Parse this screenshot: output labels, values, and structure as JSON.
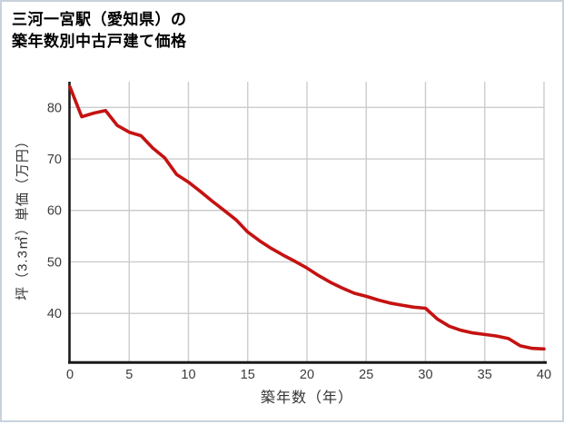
{
  "window": {
    "background": "#ffffff",
    "border_color": "#c9d2da"
  },
  "title": {
    "line1": "三河一宮駅（愛知県）の",
    "line2": "築年数別中古戸建て価格"
  },
  "chart_data": {
    "type": "line",
    "title": "三河一宮駅（愛知県）の築年数別中古戸建て価格",
    "xlabel": "築年数（年）",
    "ylabel": "坪（3.3㎡）単価（万円）",
    "x": [
      0,
      1,
      2,
      3,
      4,
      5,
      6,
      7,
      8,
      9,
      10,
      11,
      12,
      13,
      14,
      15,
      16,
      17,
      18,
      19,
      20,
      21,
      22,
      23,
      24,
      25,
      26,
      27,
      28,
      29,
      30,
      31,
      32,
      33,
      34,
      35,
      36,
      37,
      38,
      39,
      40
    ],
    "values": [
      84.0,
      78.2,
      78.9,
      79.4,
      76.5,
      75.2,
      74.5,
      72.1,
      70.2,
      67.0,
      65.5,
      63.7,
      61.8,
      60.0,
      58.2,
      55.8,
      54.1,
      52.6,
      51.3,
      50.1,
      48.8,
      47.3,
      46.0,
      44.9,
      43.9,
      43.3,
      42.6,
      42.0,
      41.6,
      41.2,
      41.0,
      38.9,
      37.5,
      36.7,
      36.2,
      35.9,
      35.6,
      35.1,
      33.7,
      33.2,
      33.1
    ],
    "x_ticks": [
      0,
      5,
      10,
      15,
      20,
      25,
      30,
      35,
      40
    ],
    "y_ticks": [
      40,
      50,
      60,
      70,
      80
    ],
    "xlim": [
      0,
      40
    ],
    "ylim": [
      30.5,
      85
    ],
    "grid": true,
    "legend_position": "none",
    "line_color": "#c51212",
    "grid_color": "#cccccc",
    "axis_color": "#1a1a1a",
    "tick_color": "#3c3c3c"
  }
}
